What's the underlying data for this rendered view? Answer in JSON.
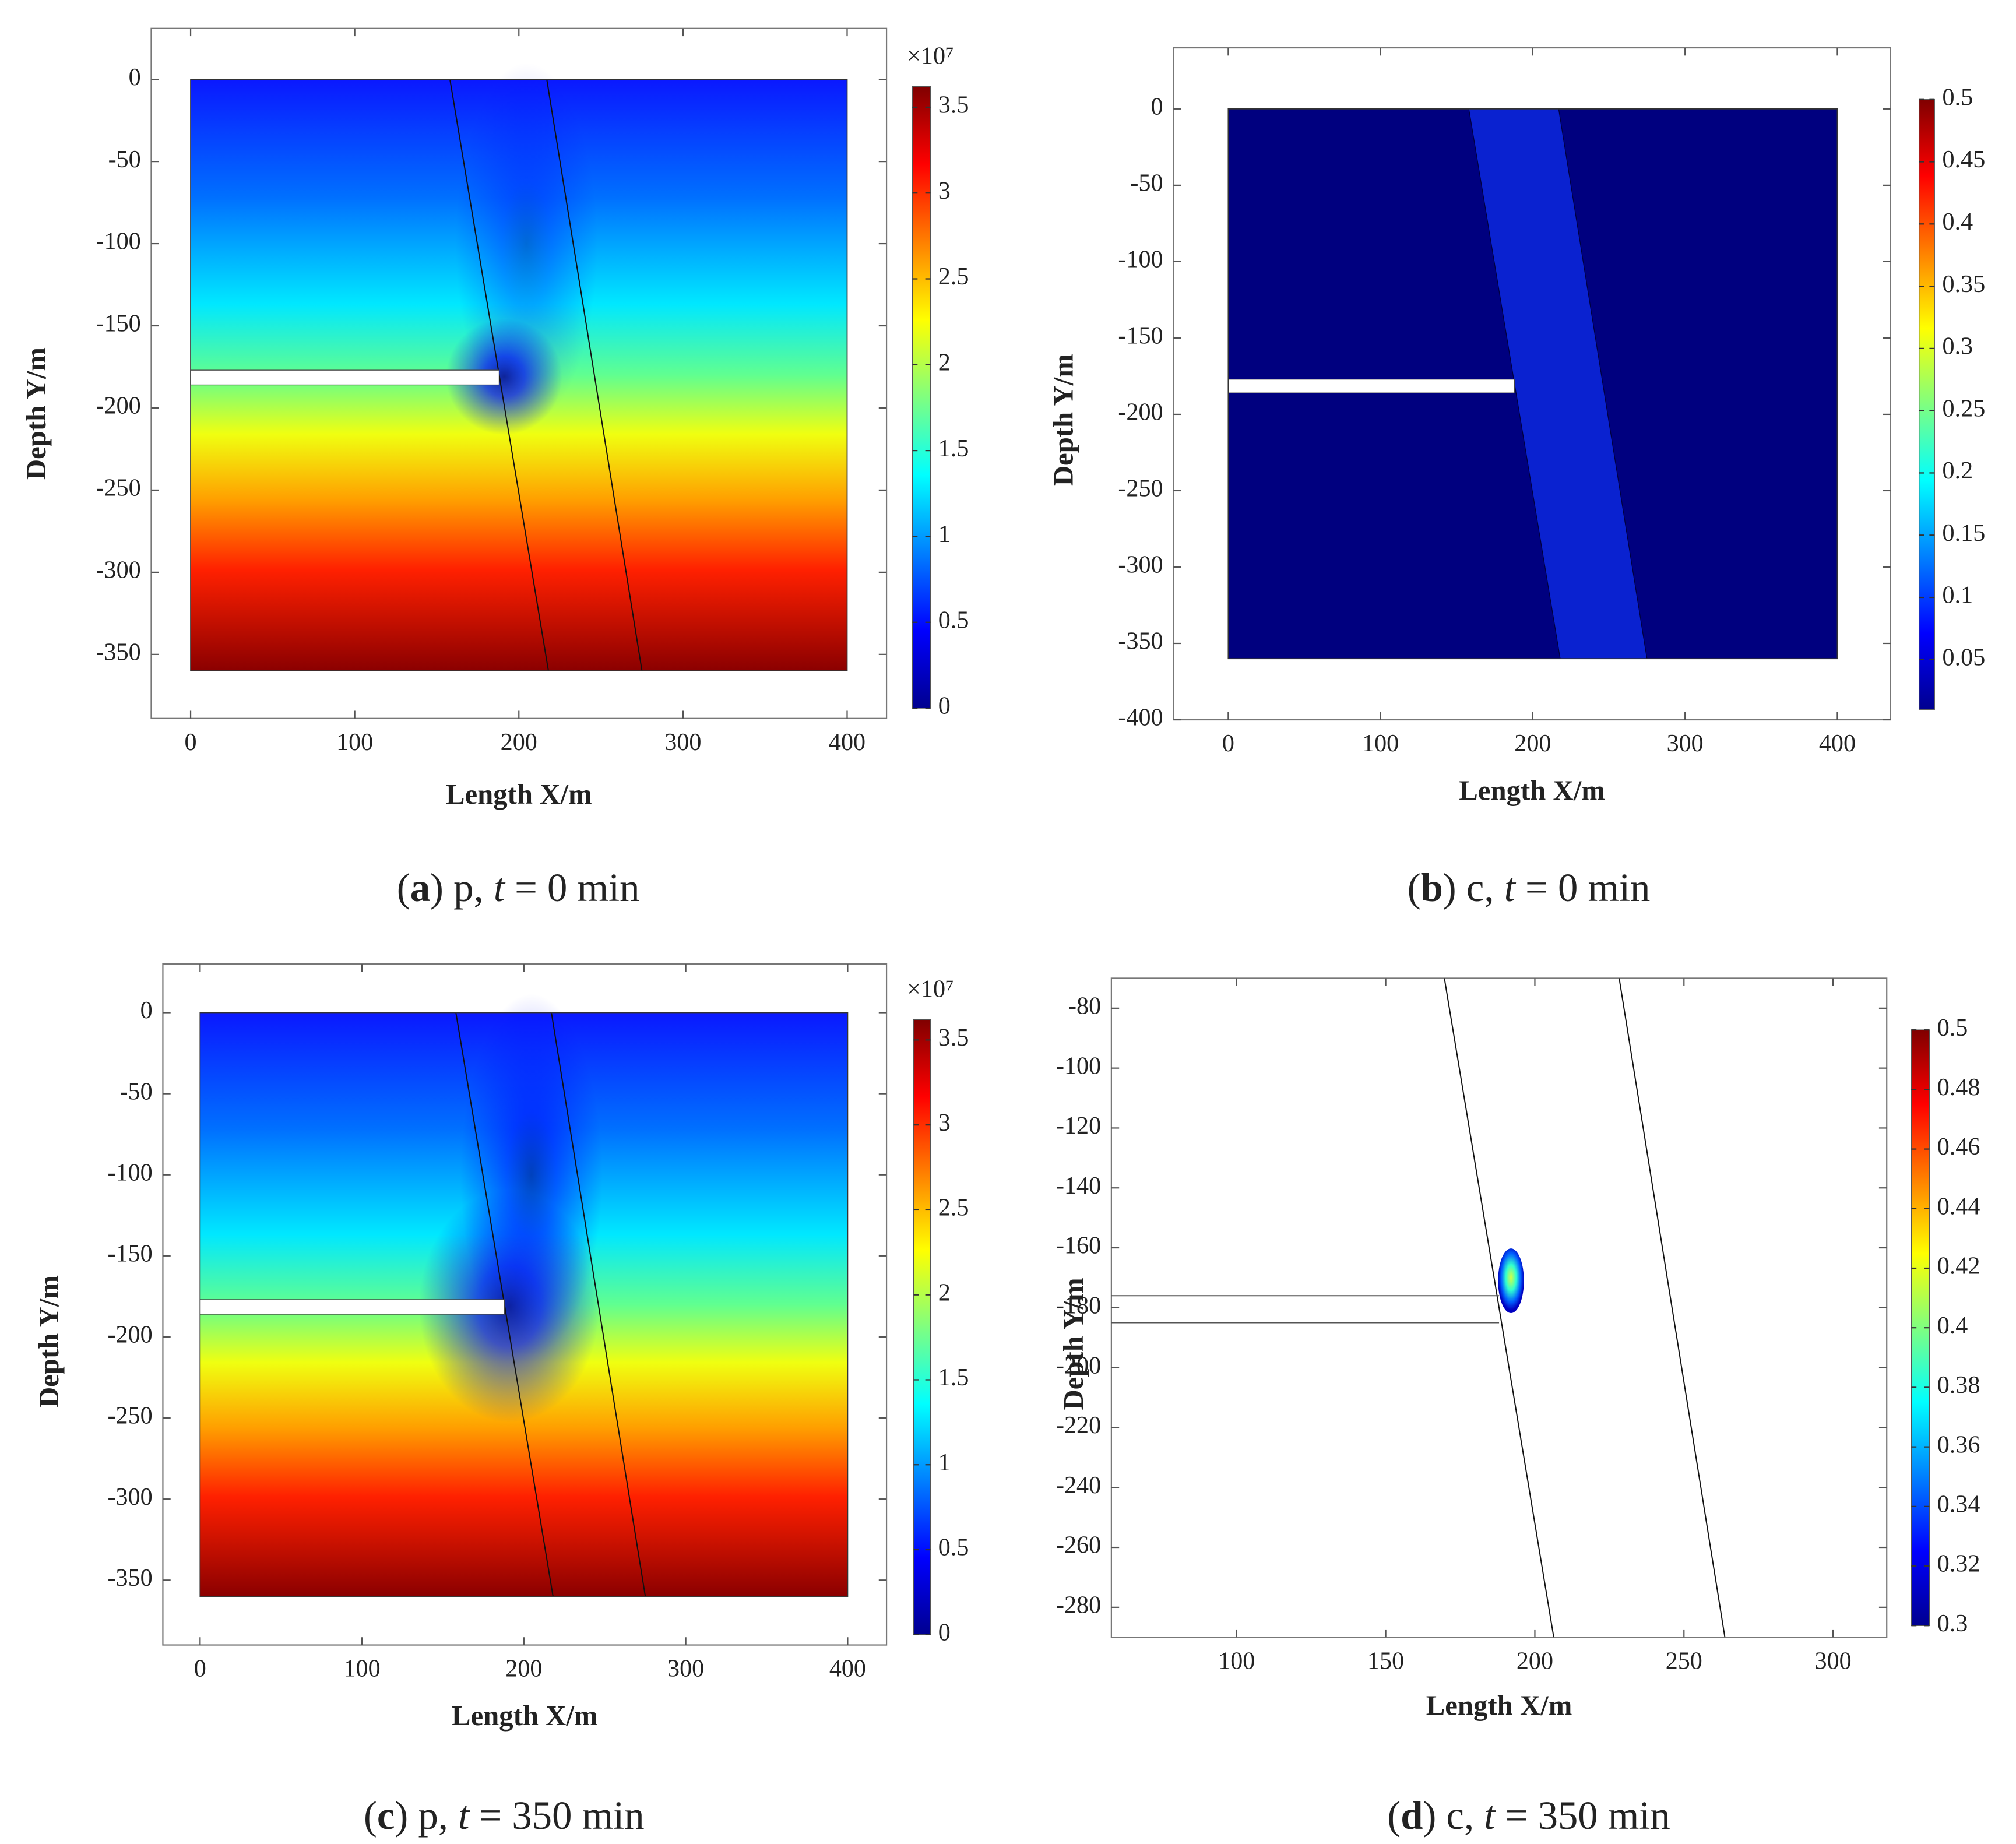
{
  "chart_data": [
    {
      "type": "field",
      "colormap": "jet",
      "xlabel": "Length X/m",
      "ylabel": "Depth Y/m",
      "xlim": [
        -24,
        424
      ],
      "ylim": [
        -389,
        31
      ],
      "xticks": [
        0,
        100,
        200,
        300,
        400
      ],
      "yticks": [
        0,
        -50,
        -100,
        -150,
        -200,
        -250,
        -300,
        -350
      ],
      "clim": [
        0,
        3.62
      ],
      "cticks": [
        0,
        0.5,
        1,
        1.5,
        2,
        2.5,
        3,
        3.5
      ],
      "cexponent": "×10⁷",
      "caption": [
        "(",
        "a",
        ") p, ",
        "t",
        " = 0 min"
      ]
    },
    {
      "type": "field",
      "colormap": "jet",
      "xlabel": "Length X/m",
      "ylabel": "Depth Y/m",
      "xlim": [
        -36,
        435
      ],
      "ylim": [
        -400,
        40
      ],
      "xticks": [
        0,
        100,
        200,
        300,
        400
      ],
      "yticks": [
        0,
        -50,
        -100,
        -150,
        -200,
        -250,
        -300,
        -350,
        -400
      ],
      "clim": [
        0.01,
        0.5
      ],
      "cticks": [
        0.05,
        0.1,
        0.15,
        0.2,
        0.25,
        0.3,
        0.35,
        0.4,
        0.45,
        0.5
      ],
      "caption": [
        "(",
        "b",
        ") c, ",
        "t",
        " = 0 min"
      ]
    },
    {
      "type": "field",
      "colormap": "jet",
      "xlabel": "Length X/m",
      "ylabel": "Depth Y/m",
      "xlim": [
        -23,
        424
      ],
      "ylim": [
        -390,
        30
      ],
      "xticks": [
        0,
        100,
        200,
        300,
        400
      ],
      "yticks": [
        0,
        -50,
        -100,
        -150,
        -200,
        -250,
        -300,
        -350
      ],
      "clim": [
        0,
        3.62
      ],
      "cticks": [
        0,
        0.5,
        1,
        1.5,
        2,
        2.5,
        3,
        3.5
      ],
      "cexponent": "×10⁷",
      "caption": [
        "(",
        "c",
        ") p, ",
        "t",
        " = 350 min"
      ]
    },
    {
      "type": "field",
      "colormap": "jet",
      "xlabel": "Length X/m",
      "ylabel": "Depth Y/m",
      "xlim": [
        58,
        318
      ],
      "ylim": [
        -290,
        -70
      ],
      "xticks": [
        100,
        150,
        200,
        250,
        300
      ],
      "yticks": [
        -80,
        -100,
        -120,
        -140,
        -160,
        -180,
        -200,
        -220,
        -240,
        -260,
        -280
      ],
      "clim": [
        0.3,
        0.5
      ],
      "cticks": [
        0.3,
        0.32,
        0.34,
        0.36,
        0.38,
        0.4,
        0.42,
        0.44,
        0.46,
        0.48,
        0.5
      ],
      "caption": [
        "(",
        "d",
        ") c, ",
        "t",
        " = 350 min"
      ]
    }
  ]
}
